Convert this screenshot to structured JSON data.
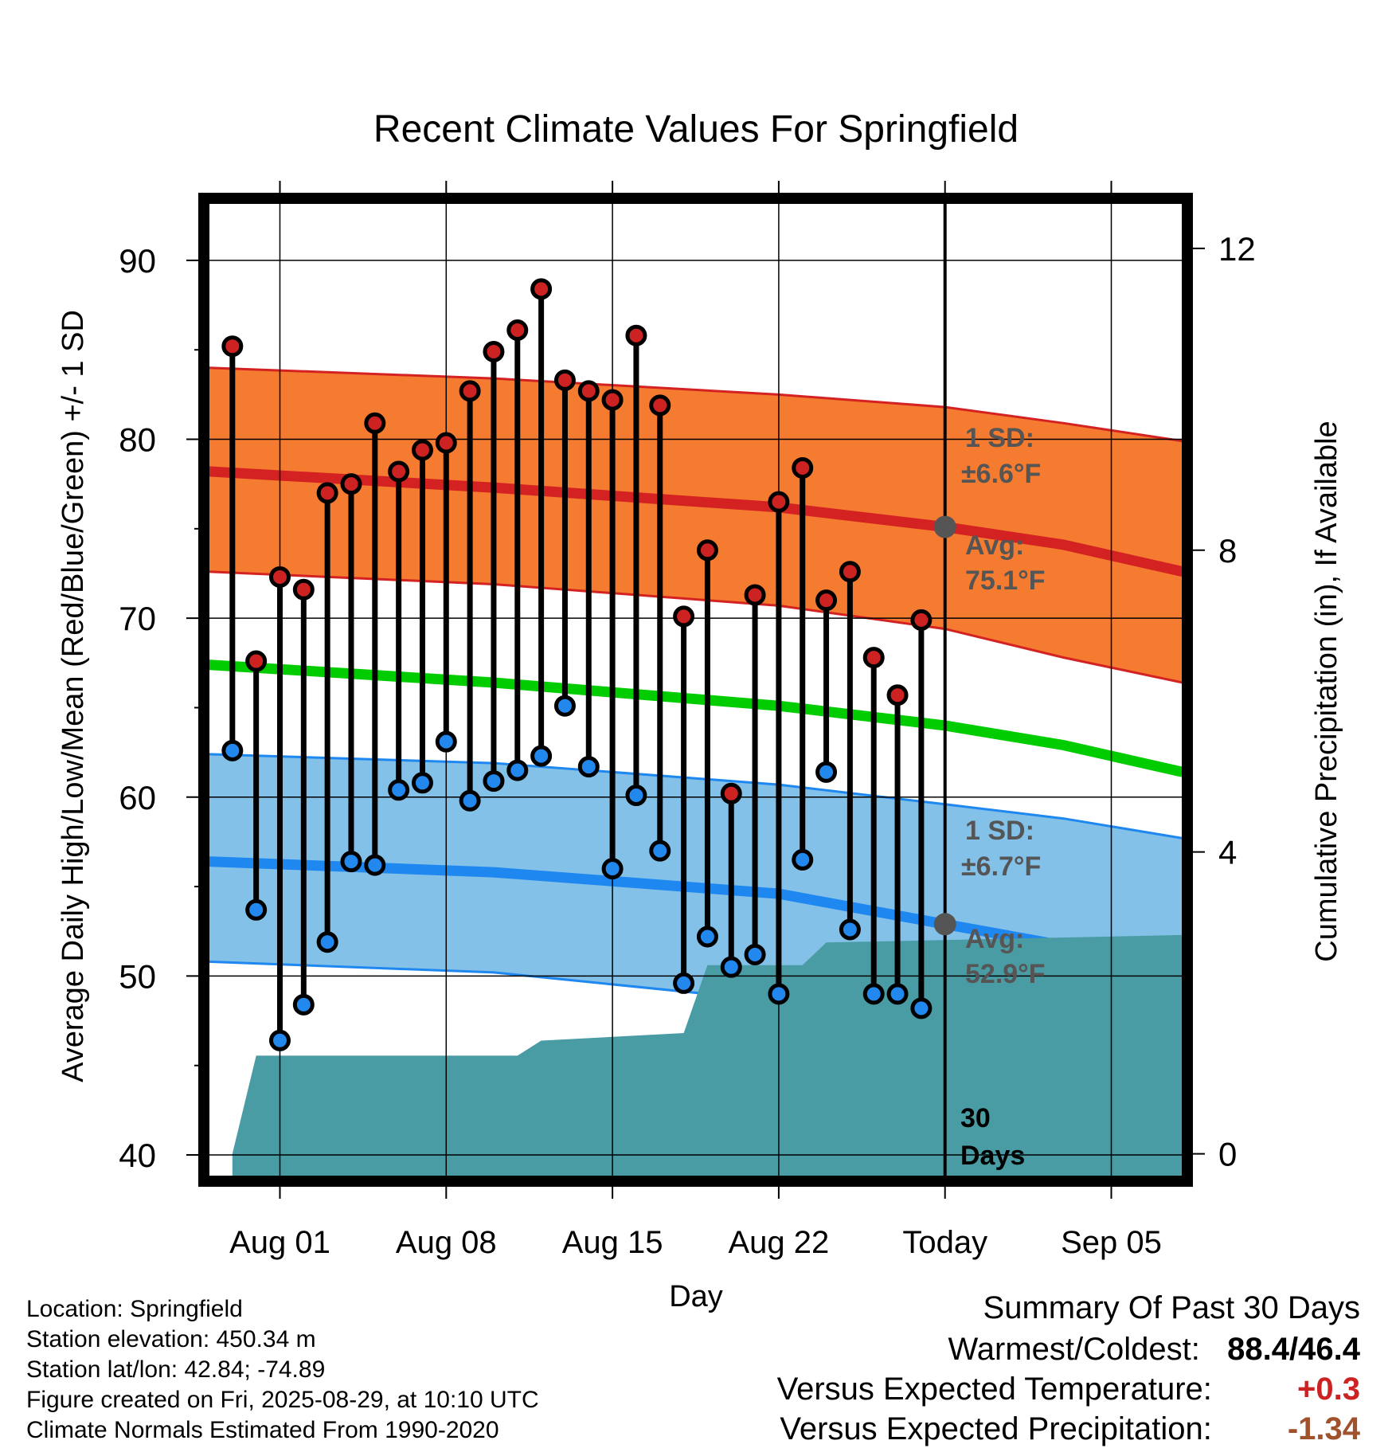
{
  "chart_data": {
    "type": "line",
    "title": "Recent Climate Values For Springfield",
    "xlabel": "Day",
    "ylabel": "Average Daily High/Low/Mean (Red/Blue/Green) +/- 1 SD",
    "y2label": "Cumulative Precipitation (in), If Available",
    "ylim": [
      38.8,
      93.2
    ],
    "y2lim": [
      -0.3,
      12.6
    ],
    "xlim": [
      "2025-07-29",
      "2025-09-08"
    ],
    "today": "2025-08-29",
    "x_tick_labels": [
      "Aug 01",
      "Aug 08",
      "Aug 15",
      "Aug 22",
      "Today",
      "Sep 05"
    ],
    "x_tick_dates": [
      "2025-08-01",
      "2025-08-08",
      "2025-08-15",
      "2025-08-22",
      "2025-08-29",
      "2025-09-05"
    ],
    "y_ticks": [
      40,
      50,
      60,
      70,
      80,
      90
    ],
    "y2_ticks": [
      0,
      4,
      8,
      12
    ],
    "grid": true,
    "series": [
      {
        "name": "High",
        "color": "#cc2222",
        "x": [
          "2025-07-30",
          "2025-07-31",
          "2025-08-01",
          "2025-08-02",
          "2025-08-03",
          "2025-08-04",
          "2025-08-05",
          "2025-08-06",
          "2025-08-07",
          "2025-08-08",
          "2025-08-09",
          "2025-08-10",
          "2025-08-11",
          "2025-08-12",
          "2025-08-13",
          "2025-08-14",
          "2025-08-15",
          "2025-08-16",
          "2025-08-17",
          "2025-08-18",
          "2025-08-19",
          "2025-08-20",
          "2025-08-21",
          "2025-08-22",
          "2025-08-23",
          "2025-08-24",
          "2025-08-25",
          "2025-08-26",
          "2025-08-27",
          "2025-08-28"
        ],
        "values": [
          85.2,
          67.6,
          72.3,
          71.6,
          77.0,
          77.5,
          80.9,
          78.2,
          79.4,
          79.8,
          82.7,
          84.9,
          86.1,
          88.4,
          83.3,
          82.7,
          82.2,
          85.8,
          81.9,
          70.1,
          73.8,
          60.2,
          71.3,
          76.5,
          78.4,
          71.0,
          72.6,
          67.8,
          65.7,
          69.9
        ]
      },
      {
        "name": "Low",
        "color": "#2288ee",
        "x": [
          "2025-07-30",
          "2025-07-31",
          "2025-08-01",
          "2025-08-02",
          "2025-08-03",
          "2025-08-04",
          "2025-08-05",
          "2025-08-06",
          "2025-08-07",
          "2025-08-08",
          "2025-08-09",
          "2025-08-10",
          "2025-08-11",
          "2025-08-12",
          "2025-08-13",
          "2025-08-14",
          "2025-08-15",
          "2025-08-16",
          "2025-08-17",
          "2025-08-18",
          "2025-08-19",
          "2025-08-20",
          "2025-08-21",
          "2025-08-22",
          "2025-08-23",
          "2025-08-24",
          "2025-08-25",
          "2025-08-26",
          "2025-08-27",
          "2025-08-28"
        ],
        "values": [
          62.6,
          53.7,
          46.4,
          48.4,
          51.9,
          56.4,
          56.2,
          60.4,
          60.8,
          63.1,
          59.8,
          60.9,
          61.5,
          62.3,
          65.1,
          61.7,
          56.0,
          60.1,
          57.0,
          49.6,
          52.2,
          50.5,
          51.2,
          49.0,
          56.5,
          61.4,
          52.6,
          49.0,
          49.0,
          48.2
        ]
      },
      {
        "x": [
          "2025-07-29",
          "2025-08-10",
          "2025-08-22",
          "2025-08-29",
          "2025-09-03",
          "2025-09-08"
        ],
        "values": [
          67.4,
          66.4,
          65.1,
          64.0,
          62.9,
          61.4
        ]
      },
      {
        "x": [
          "2025-07-29",
          "2025-08-10",
          "2025-08-22",
          "2025-08-29",
          "2025-09-03",
          "2025-09-08"
        ],
        "values": [
          78.2,
          77.3,
          76.2,
          75.1,
          74.1,
          72.6
        ]
      },
      {
        "x": [
          "2025-07-29",
          "2025-08-10",
          "2025-08-22",
          "2025-08-29",
          "2025-09-03",
          "2025-09-08"
        ],
        "values": [
          56.4,
          55.8,
          54.6,
          52.9,
          51.7,
          50.2
        ]
      }
    ],
    "bands": [
      {
        "x": [
          "2025-07-29",
          "2025-08-10",
          "2025-08-22",
          "2025-08-29",
          "2025-09-03",
          "2025-09-08"
        ],
        "upper": [
          84.0,
          83.4,
          82.5,
          81.8,
          80.9,
          79.9
        ],
        "lower": [
          72.6,
          71.9,
          70.7,
          69.4,
          67.8,
          66.4
        ]
      },
      {
        "x": [
          "2025-07-29",
          "2025-08-10",
          "2025-08-22",
          "2025-08-29",
          "2025-09-03",
          "2025-09-08"
        ],
        "upper": [
          62.4,
          61.9,
          60.7,
          59.6,
          58.8,
          57.7
        ],
        "lower": [
          50.8,
          50.2,
          48.6,
          46.9,
          45.2,
          44.6
        ]
      }
    ],
    "precipitation": {
      "x": [
        "2025-07-30",
        "2025-07-31",
        "2025-08-11",
        "2025-08-12",
        "2025-08-18",
        "2025-08-19",
        "2025-08-20",
        "2025-08-23",
        "2025-08-24",
        "2025-09-08"
      ],
      "values": [
        0.0,
        1.3,
        1.3,
        1.5,
        1.6,
        2.5,
        2.5,
        2.5,
        2.8,
        2.9
      ]
    },
    "annotations": {
      "high_sd": "1 SD:",
      "high_sd_value": "±6.6°F",
      "high_avg": "Avg:",
      "high_avg_value": "75.1°F",
      "low_sd": "1 SD:",
      "low_sd_value": "±6.7°F",
      "low_avg": "Avg:",
      "low_avg_value": "52.9°F",
      "period_days": "30",
      "period_unit": "Days"
    },
    "colors": {
      "high_band": "#f47b30",
      "high_line": "#d42222",
      "low_band": "#84c1e8",
      "low_line": "#1e88f0",
      "mean_line": "#00cc00",
      "precip": "#4a9ca4",
      "high_marker": "#cc2222",
      "low_marker": "#2288ee",
      "annotation_text": "#555555"
    }
  },
  "info": {
    "location": "Location: Springfield",
    "elevation": "Station elevation: 450.34 m",
    "latlon": "Station lat/lon: 42.84; -74.89",
    "created": "Figure created on Fri, 2025-08-29, at 10:10 UTC",
    "normals": "Climate Normals Estimated From 1990-2020"
  },
  "summary": {
    "title": "Summary Of Past 30 Days",
    "warm_cold_label": "Warmest/Coldest:",
    "warm_cold_value": "88.4/46.4",
    "temp_label": "Versus Expected Temperature:",
    "temp_value": "+0.3",
    "temp_color": "#cc2222",
    "precip_label": "Versus Expected Precipitation:",
    "precip_value": "-1.34",
    "precip_color": "#a0522d"
  }
}
